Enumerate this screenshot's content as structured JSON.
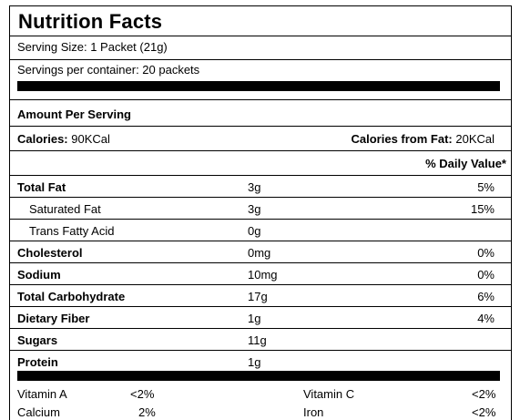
{
  "label": {
    "title": "Nutrition Facts",
    "serving_size": "Serving Size:  1 Packet (21g)",
    "servings_per_container": "Servings per container: 20 packets",
    "amount_per_serving": "Amount Per Serving",
    "calories_label": "Calories:",
    "calories_value": " 90KCal",
    "calories_from_fat_label": "Calories from Fat:",
    "calories_from_fat_value": " 20KCal",
    "daily_value_header": "% Daily Value*",
    "nutrients": [
      {
        "name": "Total Fat",
        "amount": "3g",
        "dv": "5%",
        "bold": true
      },
      {
        "name": "Saturated Fat",
        "amount": "3g",
        "dv": "15%",
        "bold": false
      },
      {
        "name": "Trans Fatty Acid",
        "amount": "0g",
        "dv": "",
        "bold": false
      },
      {
        "name": "Cholesterol",
        "amount": "0mg",
        "dv": "0%",
        "bold": true
      },
      {
        "name": "Sodium",
        "amount": "10mg",
        "dv": "0%",
        "bold": true
      },
      {
        "name": "Total Carbohydrate",
        "amount": "17g",
        "dv": "6%",
        "bold": true
      },
      {
        "name": "Dietary Fiber",
        "amount": "1g",
        "dv": "4%",
        "bold": true
      },
      {
        "name": "Sugars",
        "amount": "11g",
        "dv": "",
        "bold": true
      },
      {
        "name": "Protein",
        "amount": "1g",
        "dv": "",
        "bold": true
      }
    ],
    "vitamins": [
      {
        "name": "Vitamin A",
        "dv": "<2%"
      },
      {
        "name": "Vitamin C",
        "dv": "<2%"
      },
      {
        "name": "Calcium",
        "dv": "2%"
      },
      {
        "name": "Iron",
        "dv": "<2%"
      }
    ]
  }
}
